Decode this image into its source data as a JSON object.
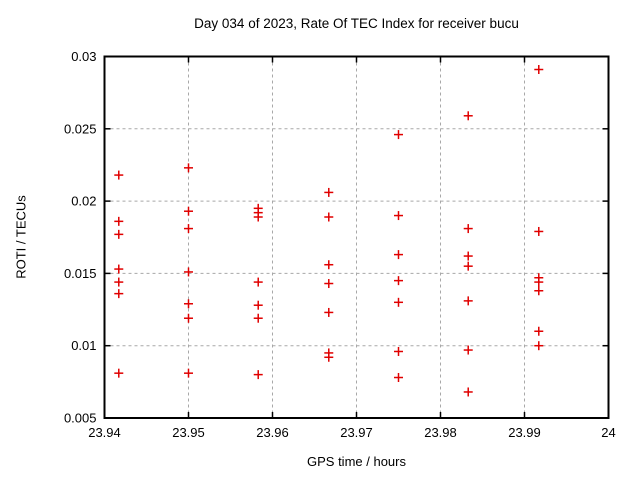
{
  "page": {
    "background": "#ffffff"
  },
  "chart_data": {
    "type": "scatter",
    "title": "Day 034 of 2023, Rate Of TEC Index for receiver bucu",
    "xlabel": "GPS time / hours",
    "ylabel": "ROTI / TECUs",
    "xlim": [
      23.94,
      24
    ],
    "ylim": [
      0.005,
      0.03
    ],
    "xtick_labels": [
      "23.94",
      "23.95",
      "23.96",
      "23.97",
      "23.98",
      "23.99",
      "24"
    ],
    "xtick_values": [
      23.94,
      23.95,
      23.96,
      23.97,
      23.98,
      23.99,
      24
    ],
    "ytick_labels": [
      "0.005",
      "0.01",
      "0.015",
      "0.02",
      "0.025",
      "0.03"
    ],
    "ytick_values": [
      0.005,
      0.01,
      0.015,
      0.02,
      0.025,
      0.03
    ],
    "grid": true,
    "grid_style": "dashed",
    "legend": "none",
    "marker": "plus",
    "colors": {
      "marker": "#e00000",
      "grid": "#a8a8a8",
      "border": "#000000",
      "text": "#000000"
    },
    "series": [
      {
        "name": "ROTI",
        "points": [
          [
            23.9417,
            0.0218
          ],
          [
            23.9417,
            0.0186
          ],
          [
            23.9417,
            0.0177
          ],
          [
            23.9417,
            0.0153
          ],
          [
            23.9417,
            0.0144
          ],
          [
            23.9417,
            0.0136
          ],
          [
            23.9417,
            0.0081
          ],
          [
            23.95,
            0.0223
          ],
          [
            23.95,
            0.0193
          ],
          [
            23.95,
            0.0181
          ],
          [
            23.95,
            0.0151
          ],
          [
            23.95,
            0.0129
          ],
          [
            23.95,
            0.0119
          ],
          [
            23.95,
            0.0081
          ],
          [
            23.9583,
            0.0195
          ],
          [
            23.9583,
            0.0192
          ],
          [
            23.9583,
            0.0189
          ],
          [
            23.9583,
            0.0144
          ],
          [
            23.9583,
            0.0128
          ],
          [
            23.9583,
            0.0119
          ],
          [
            23.9583,
            0.008
          ],
          [
            23.9667,
            0.0206
          ],
          [
            23.9667,
            0.0189
          ],
          [
            23.9667,
            0.0156
          ],
          [
            23.9667,
            0.0143
          ],
          [
            23.9667,
            0.0123
          ],
          [
            23.9667,
            0.0095
          ],
          [
            23.9667,
            0.0092
          ],
          [
            23.975,
            0.0246
          ],
          [
            23.975,
            0.019
          ],
          [
            23.975,
            0.0163
          ],
          [
            23.975,
            0.0145
          ],
          [
            23.975,
            0.013
          ],
          [
            23.975,
            0.0096
          ],
          [
            23.975,
            0.0078
          ],
          [
            23.9833,
            0.0259
          ],
          [
            23.9833,
            0.0181
          ],
          [
            23.9833,
            0.0162
          ],
          [
            23.9833,
            0.0155
          ],
          [
            23.9833,
            0.0131
          ],
          [
            23.9833,
            0.0097
          ],
          [
            23.9833,
            0.0068
          ],
          [
            23.9917,
            0.0291
          ],
          [
            23.9917,
            0.0179
          ],
          [
            23.9917,
            0.0147
          ],
          [
            23.9917,
            0.0144
          ],
          [
            23.9917,
            0.0138
          ],
          [
            23.9917,
            0.011
          ],
          [
            23.9917,
            0.01
          ]
        ]
      }
    ]
  }
}
